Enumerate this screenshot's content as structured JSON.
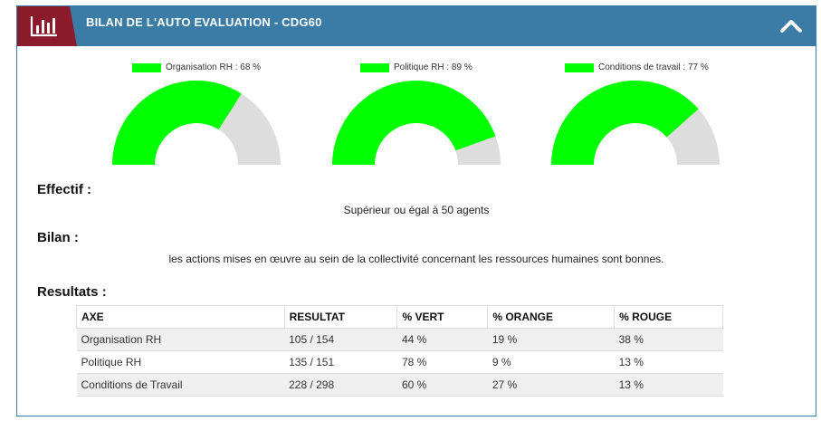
{
  "header": {
    "title": "BILAN DE L'AUTO EVALUATION - CDG60",
    "icon": "bar-chart-icon",
    "collapse_icon": "chevron-up-icon",
    "accent_color": "#8b1a2b",
    "bar_color": "#3a7ca5"
  },
  "gauges": [
    {
      "label": "Organisation RH : 68 %",
      "percent": 68
    },
    {
      "label": "Politique RH : 89 %",
      "percent": 89
    },
    {
      "label": "Conditions de travail : 77 %",
      "percent": 77
    }
  ],
  "gauge_colors": {
    "fill": "#00ff00",
    "rest": "#dddddd"
  },
  "effectif": {
    "title": "Effectif :",
    "value": "Supérieur ou égal à 50 agents"
  },
  "bilan": {
    "title": "Bilan :",
    "value": "les actions mises en œuvre au sein de la collectivité concernant les ressources humaines sont bonnes."
  },
  "resultats": {
    "title": "Resultats :",
    "columns": [
      "AXE",
      "RESULTAT",
      "% VERT",
      "% ORANGE",
      "% ROUGE"
    ],
    "rows": [
      [
        "Organisation RH",
        "105 / 154",
        "44 %",
        "19 %",
        "38 %"
      ],
      [
        "Politique RH",
        "135 / 151",
        "78 %",
        "9 %",
        "13 %"
      ],
      [
        "Conditions de Travail",
        "228 / 298",
        "60 %",
        "27 %",
        "13 %"
      ]
    ]
  }
}
